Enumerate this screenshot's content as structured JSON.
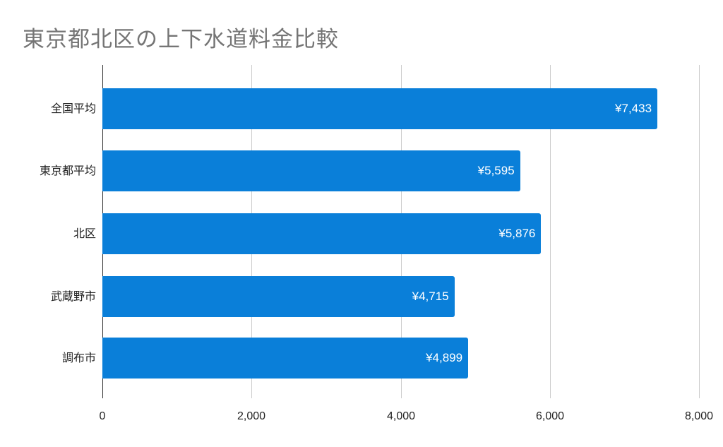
{
  "title": "東京都北区の上下水道料金比較",
  "chart_data": {
    "type": "bar",
    "orientation": "horizontal",
    "title": "東京都北区の上下水道料金比較",
    "categories": [
      "全国平均",
      "東京都平均",
      "北区",
      "武蔵野市",
      "調布市"
    ],
    "values": [
      7433,
      5595,
      5876,
      4715,
      4899
    ],
    "data_labels": [
      "¥7,433",
      "¥5,595",
      "¥5,876",
      "¥4,715",
      "¥4,899"
    ],
    "xlabel": "",
    "ylabel": "",
    "xlim": [
      0,
      8000
    ],
    "x_ticks": [
      "0",
      "2,000",
      "4,000",
      "6,000",
      "8,000"
    ],
    "grid": true,
    "legend": "none",
    "bar_color": "#0a7fd9"
  }
}
